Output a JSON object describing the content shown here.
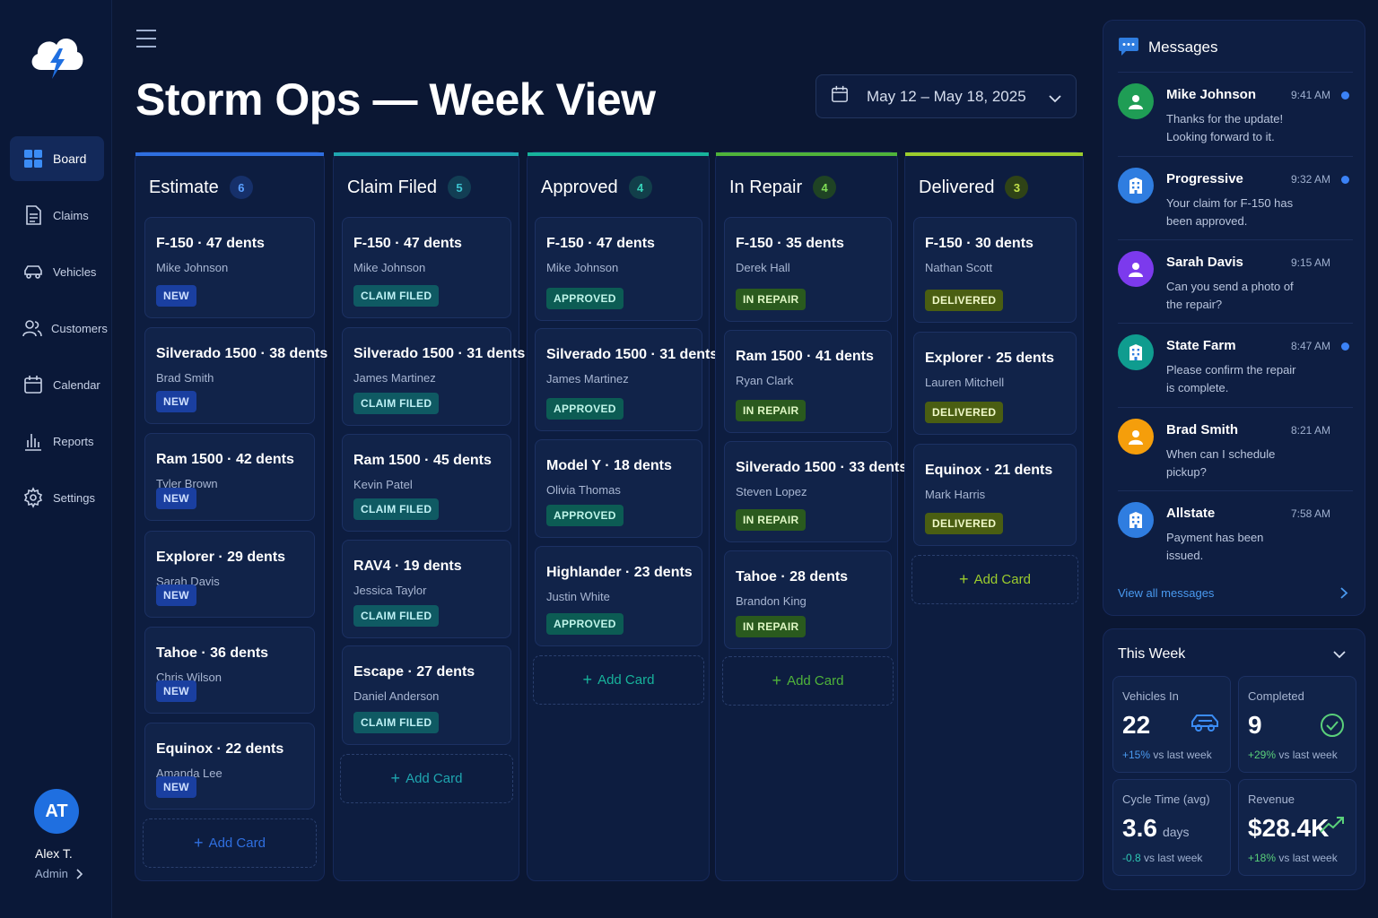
{
  "sidebar": {
    "items": [
      {
        "label": "Board",
        "icon": "grid-icon"
      },
      {
        "label": "Claims",
        "icon": "document-icon"
      },
      {
        "label": "Vehicles",
        "icon": "car-icon"
      },
      {
        "label": "Customers",
        "icon": "users-icon"
      },
      {
        "label": "Calendar",
        "icon": "calendar-icon"
      },
      {
        "label": "Reports",
        "icon": "bar-chart-icon"
      },
      {
        "label": "Settings",
        "icon": "gear-icon"
      }
    ],
    "user": {
      "initials": "AT",
      "name": "Alex T.",
      "role": "Admin"
    }
  },
  "header": {
    "title": "Storm Ops — Week View",
    "date_range": "May 12 – May 18, 2025"
  },
  "colors": {
    "estimate": "#2f6fe0",
    "claim_filed": "#1fa6b0",
    "approved": "#17b39b",
    "in_repair": "#4fb33a",
    "delivered": "#9ccc2d"
  },
  "board": {
    "add_card_label": "Add Card",
    "columns": [
      {
        "title": "Estimate",
        "count": "6",
        "cards": [
          {
            "vehicle": "F-150",
            "dents": "47 dents",
            "customer": "Mike Johnson",
            "status": "NEW"
          },
          {
            "vehicle": "Silverado 1500",
            "dents": "38 dents",
            "customer": "Brad Smith",
            "status": "NEW"
          },
          {
            "vehicle": "Ram 1500",
            "dents": "42 dents",
            "customer": "Tyler Brown",
            "status": "NEW"
          },
          {
            "vehicle": "Explorer",
            "dents": "29 dents",
            "customer": "Sarah Davis",
            "status": "NEW"
          },
          {
            "vehicle": "Tahoe",
            "dents": "36 dents",
            "customer": "Chris Wilson",
            "status": "NEW"
          },
          {
            "vehicle": "Equinox",
            "dents": "22 dents",
            "customer": "Amanda Lee",
            "status": "NEW"
          }
        ]
      },
      {
        "title": "Claim Filed",
        "count": "5",
        "cards": [
          {
            "vehicle": "F-150",
            "dents": "47 dents",
            "customer": "Mike Johnson",
            "status": "CLAIM FILED"
          },
          {
            "vehicle": "Silverado 1500",
            "dents": "31 dents",
            "customer": "James Martinez",
            "status": "CLAIM FILED"
          },
          {
            "vehicle": "Ram 1500",
            "dents": "45 dents",
            "customer": "Kevin Patel",
            "status": "CLAIM FILED"
          },
          {
            "vehicle": "RAV4",
            "dents": "19 dents",
            "customer": "Jessica Taylor",
            "status": "CLAIM FILED"
          },
          {
            "vehicle": "Escape",
            "dents": "27 dents",
            "customer": "Daniel Anderson",
            "status": "CLAIM FILED"
          }
        ]
      },
      {
        "title": "Approved",
        "count": "4",
        "cards": [
          {
            "vehicle": "F-150",
            "dents": "47 dents",
            "customer": "Mike Johnson",
            "status": "APPROVED"
          },
          {
            "vehicle": "Silverado 1500",
            "dents": "31 dents",
            "customer": "James Martinez",
            "status": "APPROVED"
          },
          {
            "vehicle": "Model Y",
            "dents": "18 dents",
            "customer": "Olivia Thomas",
            "status": "APPROVED"
          },
          {
            "vehicle": "Highlander",
            "dents": "23 dents",
            "customer": "Justin White",
            "status": "APPROVED"
          }
        ]
      },
      {
        "title": "In Repair",
        "count": "4",
        "cards": [
          {
            "vehicle": "F-150",
            "dents": "35 dents",
            "customer": "Derek Hall",
            "status": "IN REPAIR"
          },
          {
            "vehicle": "Ram 1500",
            "dents": "41 dents",
            "customer": "Ryan Clark",
            "status": "IN REPAIR"
          },
          {
            "vehicle": "Silverado 1500",
            "dents": "33 dents",
            "customer": "Steven Lopez",
            "status": "IN REPAIR"
          },
          {
            "vehicle": "Tahoe",
            "dents": "28 dents",
            "customer": "Brandon King",
            "status": "IN REPAIR"
          }
        ]
      },
      {
        "title": "Delivered",
        "count": "3",
        "cards": [
          {
            "vehicle": "F-150",
            "dents": "30 dents",
            "customer": "Nathan Scott",
            "status": "DELIVERED"
          },
          {
            "vehicle": "Explorer",
            "dents": "25 dents",
            "customer": "Lauren Mitchell",
            "status": "DELIVERED"
          },
          {
            "vehicle": "Equinox",
            "dents": "21 dents",
            "customer": "Mark Harris",
            "status": "DELIVERED"
          }
        ]
      }
    ]
  },
  "messages": {
    "title": "Messages",
    "items": [
      {
        "name": "Mike Johnson",
        "time": "9:41 AM",
        "text": "Thanks for the update! Looking forward to it.",
        "unread": true,
        "avatar": "person-icon",
        "color": "#1f9d55"
      },
      {
        "name": "Progressive",
        "time": "9:32 AM",
        "text": "Your claim for F-150 has been approved.",
        "unread": true,
        "avatar": "building-icon",
        "color": "#2f7de0"
      },
      {
        "name": "Sarah Davis",
        "time": "9:15 AM",
        "text": "Can you send a photo of the repair?",
        "unread": false,
        "avatar": "person-icon",
        "color": "#7c3aed"
      },
      {
        "name": "State Farm",
        "time": "8:47 AM",
        "text": "Please confirm the repair is complete.",
        "unread": true,
        "avatar": "building-icon",
        "color": "#0f9c8f"
      },
      {
        "name": "Brad Smith",
        "time": "8:21 AM",
        "text": "When can I schedule pickup?",
        "unread": false,
        "avatar": "person-icon",
        "color": "#f59e0b"
      },
      {
        "name": "Allstate",
        "time": "7:58 AM",
        "text": "Payment has been issued.",
        "unread": false,
        "avatar": "building-icon",
        "color": "#2f7de0"
      }
    ],
    "view_all": "View all messages"
  },
  "this_week": {
    "title": "This Week",
    "stats": [
      {
        "label": "Vehicles In",
        "value": "22",
        "unit": "",
        "delta": "+15%",
        "delta_rest": " vs last week",
        "delta_color": "#4a9af0",
        "icon": "car-icon"
      },
      {
        "label": "Completed",
        "value": "9",
        "unit": "",
        "delta": "+29%",
        "delta_rest": " vs last week",
        "delta_color": "#5ad07a",
        "icon": "check-circle-icon"
      },
      {
        "label": "Cycle Time (avg)",
        "value": "3.6",
        "unit": "days",
        "delta": "-0.8",
        "delta_rest": " vs last week",
        "delta_color": "#2fc9b5",
        "icon": ""
      },
      {
        "label": "Revenue",
        "value": "$28.4K",
        "unit": "",
        "delta": "+18%",
        "delta_rest": " vs last week",
        "delta_color": "#5ad07a",
        "icon": "trend-up-icon"
      }
    ]
  }
}
